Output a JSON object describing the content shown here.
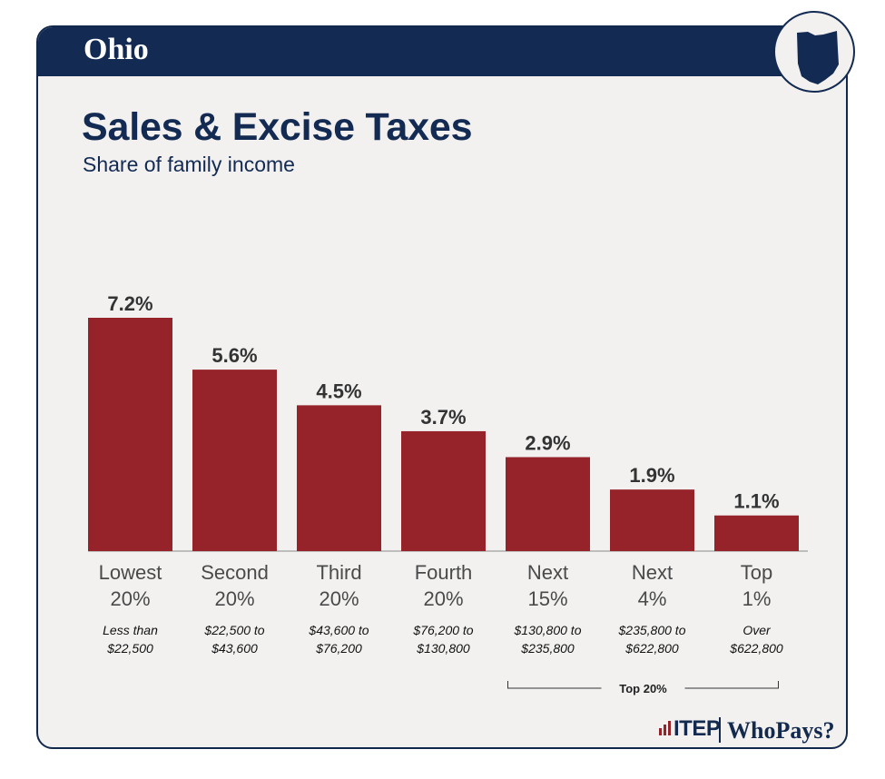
{
  "header": {
    "state": "Ohio"
  },
  "logos": {
    "itep": "ITEP",
    "whopays": "WhoPays?"
  },
  "colors": {
    "navy": "#132b52",
    "bar": "#96232a",
    "card": "#f2f1f0"
  },
  "chart_data": {
    "type": "bar",
    "title": "Sales & Excise Taxes",
    "subtitle": "Share of family income",
    "categories": [
      [
        "Lowest",
        "20%"
      ],
      [
        "Second",
        "20%"
      ],
      [
        "Third",
        "20%"
      ],
      [
        "Fourth",
        "20%"
      ],
      [
        "Next",
        "15%"
      ],
      [
        "Next",
        "4%"
      ],
      [
        "Top",
        "1%"
      ]
    ],
    "income_ranges": [
      [
        "Less than",
        "$22,500"
      ],
      [
        "$22,500 to",
        "$43,600"
      ],
      [
        "$43,600 to",
        "$76,200"
      ],
      [
        "$76,200 to",
        "$130,800"
      ],
      [
        "$130,800 to",
        "$235,800"
      ],
      [
        "$235,800 to",
        "$622,800"
      ],
      [
        "Over",
        "$622,800"
      ]
    ],
    "values": [
      7.2,
      5.6,
      4.5,
      3.7,
      2.9,
      1.9,
      1.1
    ],
    "value_labels": [
      "7.2%",
      "5.6%",
      "4.5%",
      "3.7%",
      "2.9%",
      "1.9%",
      "1.1%"
    ],
    "ylim": [
      0,
      7.2
    ],
    "grid": false,
    "bracket": {
      "label": "Top 20%",
      "from_index": 4,
      "to_index": 6
    }
  }
}
